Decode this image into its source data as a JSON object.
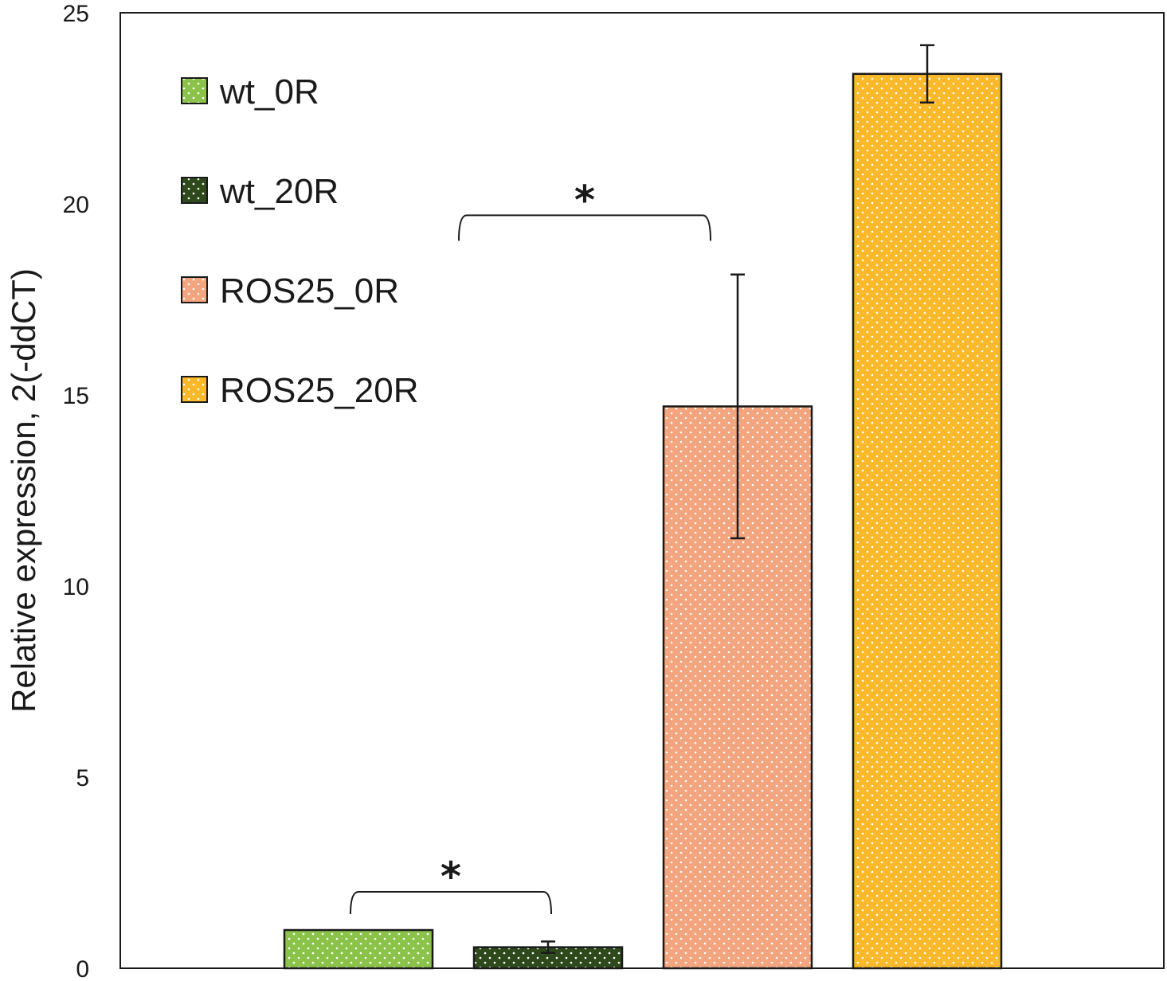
{
  "chart_data": {
    "type": "bar",
    "title": "",
    "xlabel": "",
    "ylabel": "Relative expression, 2(-ddCT)",
    "ylim": [
      0,
      25
    ],
    "yticks": [
      0,
      5,
      10,
      15,
      20,
      25
    ],
    "grid": false,
    "legend_position": "top-left",
    "fill_pattern": "dotted",
    "series": [
      {
        "name": "wt_0R",
        "value": 1.0,
        "error": 0.0,
        "color": "#8bc34a"
      },
      {
        "name": "wt_20R",
        "value": 0.55,
        "error": 0.15,
        "color": "#2e4a1c"
      },
      {
        "name": "ROS25_0R",
        "value": 14.7,
        "error": 3.45,
        "color": "#f2a57e"
      },
      {
        "name": "ROS25_20R",
        "value": 23.4,
        "error": 0.75,
        "color": "#f9b92a"
      }
    ],
    "significance": [
      {
        "label": "*",
        "between": [
          "wt_0R",
          "wt_20R"
        ],
        "level": 2.0
      },
      {
        "label": "*",
        "between": [
          "wt_20R",
          "ROS25_0R"
        ],
        "level": 19.7
      }
    ]
  }
}
